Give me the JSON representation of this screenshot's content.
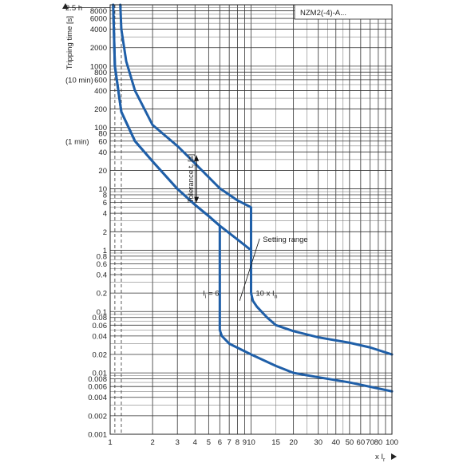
{
  "chart_data": {
    "type": "line",
    "title": "NZM2(-4)-A...",
    "ylabel": "Tripping time [s]",
    "xlabel": "x I",
    "xlabel_sub": "r",
    "xscale": "log",
    "yscale": "log",
    "xlim": [
      1,
      100
    ],
    "ylim": [
      0.001,
      10000
    ],
    "xticks": [
      1,
      2,
      3,
      4,
      5,
      6,
      7,
      8,
      9,
      10,
      15,
      20,
      30,
      40,
      50,
      60,
      70,
      80,
      100
    ],
    "xtick_labels": [
      "1",
      "2",
      "3",
      "4",
      "5",
      "6",
      "7",
      "8",
      "9",
      "10",
      "15",
      "20",
      "30",
      "40",
      "50",
      "60",
      "70",
      "80",
      "100"
    ],
    "yticks": [
      0.001,
      0.002,
      0.004,
      0.006,
      0.008,
      0.01,
      0.02,
      0.04,
      0.06,
      0.08,
      0.1,
      0.2,
      0.4,
      0.6,
      0.8,
      1,
      2,
      4,
      6,
      8,
      10,
      20,
      40,
      60,
      80,
      100,
      200,
      400,
      600,
      800,
      1000,
      2000,
      4000,
      6000,
      8000
    ],
    "ytick_labels": [
      "0.001",
      "0.002",
      "0.004",
      "0.006",
      "0.008",
      "0.01",
      "0.02",
      "0.04",
      "0.06",
      "0.08",
      "0.1",
      "0.2",
      "0.4",
      "0.6",
      "0.8",
      "1",
      "2",
      "4",
      "6",
      "8",
      "10",
      "20",
      "40",
      "60",
      "80",
      "100",
      "200",
      "400",
      "600",
      "800",
      "1000",
      "2000",
      "4000",
      "6000",
      "8000"
    ],
    "side_labels": [
      {
        "text": "2.5 h",
        "y": 9000
      },
      {
        "text": "(10 min)",
        "y": 600
      },
      {
        "text": "(1 min)",
        "y": 60
      }
    ],
    "grid": true,
    "series": [
      {
        "x": [
          1.18,
          1.2,
          1.3,
          1.5,
          2.0,
          3.0,
          4.0,
          5.0,
          6.0,
          8.0,
          10.0,
          10.0,
          10.3,
          11,
          13,
          15,
          20,
          30,
          50,
          70,
          100
        ],
        "y": [
          10000,
          4000,
          1200,
          400,
          110,
          50,
          26,
          15.5,
          10.2,
          6.5,
          5,
          0.2,
          0.15,
          0.12,
          0.08,
          0.06,
          0.048,
          0.038,
          0.031,
          0.026,
          0.02
        ]
      },
      {
        "x": [
          1.05,
          1.08,
          1.2,
          1.5,
          2.0,
          3.0,
          4.0,
          5.0,
          6.0,
          6.0,
          6.2,
          7.0,
          10.0,
          15,
          20,
          30,
          50,
          100
        ],
        "y": [
          10000,
          1000,
          180,
          60,
          28,
          10,
          5.5,
          3.6,
          2.5,
          0.05,
          0.04,
          0.03,
          0.02,
          0.013,
          0.01,
          0.0085,
          0.007,
          0.005
        ]
      }
    ],
    "tolerance_curve": {
      "x": [
        1.05,
        1.08,
        1.2,
        1.5,
        2.0,
        3.0,
        4.0,
        5.0,
        6.0,
        8.0,
        10.0
      ],
      "y": [
        10000,
        1000,
        180,
        60,
        28,
        10,
        5.5,
        3.6,
        2.5,
        1.5,
        1
      ]
    },
    "dashed_x": [
      1.08,
      1.2
    ],
    "annotations": [
      {
        "text": "Tolerance t",
        "sub": "r",
        "suffix": " [s]",
        "type": "tolerance",
        "x": 4.1,
        "y_top": 35,
        "y_bottom": 6
      },
      {
        "text": "Setting range",
        "type": "leader",
        "x": 11.5,
        "y": 1.5,
        "to_x": 8.3,
        "to_y": 0.15
      },
      {
        "text": "I",
        "sub": "i",
        "suffix": " = 6",
        "x": 4.0,
        "y": 0.18
      },
      {
        "text": "10 x I",
        "sub": "n",
        "x": 10.8,
        "y": 0.18
      }
    ],
    "colors": {
      "curve": "#1f5fa8",
      "grid": "#333333",
      "text": "#222222"
    }
  }
}
